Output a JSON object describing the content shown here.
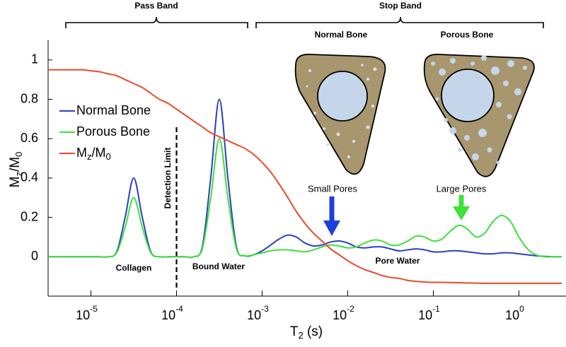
{
  "chart_data": {
    "type": "line",
    "xlabel": "T2 (s)",
    "ylabel": "Mz/M0",
    "xscale": "log",
    "xlim": [
      3.16e-06,
      3.55
    ],
    "ylim": [
      -0.2,
      1.1
    ],
    "xticks": [
      {
        "value": 1e-05,
        "label": "10-5"
      },
      {
        "value": 0.0001,
        "label": "10-4"
      },
      {
        "value": 0.001,
        "label": "10-3"
      },
      {
        "value": 0.01,
        "label": "10-2"
      },
      {
        "value": 0.1,
        "label": "10-1"
      },
      {
        "value": 1,
        "label": "100"
      }
    ],
    "yticks": [
      0,
      0.2,
      0.4,
      0.6,
      0.8,
      1
    ],
    "grid": false,
    "legend": "upper left",
    "detection_limit": 0.0001,
    "annotations": [
      "Pass Band",
      "Stop Band",
      "Normal Bone",
      "Porous Bone",
      "Small Pores",
      "Large Pores",
      "Collagen",
      "Bound Water",
      "Pore Water",
      "Detection Limit"
    ],
    "x": [
      3.16e-06,
      3.98e-06,
      5.01e-06,
      6.31e-06,
      7.94e-06,
      1e-05,
      1.26e-05,
      1.58e-05,
      2e-05,
      2.51e-05,
      3.16e-05,
      3.98e-05,
      5.01e-05,
      6.31e-05,
      7.94e-05,
      0.0001,
      0.000126,
      0.000158,
      0.0002,
      0.000251,
      0.000316,
      0.000398,
      0.000501,
      0.000631,
      0.000794,
      0.001,
      0.00126,
      0.00158,
      0.002,
      0.00251,
      0.00316,
      0.00398,
      0.00501,
      0.00631,
      0.00794,
      0.01,
      0.0126,
      0.0158,
      0.02,
      0.0251,
      0.0316,
      0.0398,
      0.0501,
      0.0631,
      0.0794,
      0.1,
      0.126,
      0.158,
      0.2,
      0.251,
      0.316,
      0.398,
      0.501,
      0.631,
      0.794,
      1,
      1.26,
      1.58,
      2,
      2.51,
      3.16
    ],
    "series": [
      {
        "name": "Normal Bone",
        "color": "#2b3fc6",
        "values": [
          0,
          0,
          0,
          0,
          0,
          0,
          0,
          0,
          0.025,
          0.2,
          0.4,
          0.2,
          0.025,
          0,
          0,
          0,
          0,
          0,
          0.05,
          0.4,
          0.8,
          0.4,
          0.05,
          0.005,
          0.01,
          0.03,
          0.06,
          0.09,
          0.11,
          0.1,
          0.07,
          0.055,
          0.06,
          0.075,
          0.08,
          0.07,
          0.05,
          0.045,
          0.05,
          0.05,
          0.04,
          0.03,
          0.035,
          0.04,
          0.035,
          0.025,
          0.025,
          0.03,
          0.03,
          0.025,
          0.02,
          0.015,
          0.015,
          0.02,
          0.02,
          0.015,
          0.01,
          0.005,
          0.002,
          0,
          0
        ]
      },
      {
        "name": "Porous Bone",
        "color": "#3fe03a",
        "values": [
          0,
          0,
          0,
          0,
          0,
          0,
          0,
          0,
          0.02,
          0.15,
          0.3,
          0.15,
          0.02,
          0,
          0,
          0,
          0,
          0,
          0.04,
          0.3,
          0.6,
          0.3,
          0.04,
          0.005,
          0.01,
          0.02,
          0.03,
          0.035,
          0.035,
          0.03,
          0.025,
          0.035,
          0.05,
          0.06,
          0.055,
          0.045,
          0.05,
          0.07,
          0.085,
          0.08,
          0.06,
          0.06,
          0.08,
          0.105,
          0.1,
          0.08,
          0.09,
          0.13,
          0.16,
          0.14,
          0.1,
          0.12,
          0.18,
          0.21,
          0.18,
          0.1,
          0.04,
          0.01,
          0,
          0,
          0
        ]
      },
      {
        "name": "Mz/M0",
        "color": "#e84a2c",
        "values": [
          0.95,
          0.95,
          0.95,
          0.95,
          0.95,
          0.945,
          0.94,
          0.93,
          0.92,
          0.9,
          0.88,
          0.86,
          0.83,
          0.8,
          0.78,
          0.75,
          0.72,
          0.69,
          0.66,
          0.63,
          0.61,
          0.59,
          0.57,
          0.55,
          0.52,
          0.48,
          0.43,
          0.37,
          0.3,
          0.23,
          0.17,
          0.12,
          0.08,
          0.04,
          0.01,
          -0.02,
          -0.045,
          -0.065,
          -0.08,
          -0.095,
          -0.105,
          -0.11,
          -0.12,
          -0.125,
          -0.128,
          -0.13,
          -0.13,
          -0.131,
          -0.132,
          -0.133,
          -0.134,
          -0.135,
          -0.135,
          -0.135,
          -0.135,
          -0.135,
          -0.135,
          -0.135,
          -0.135,
          -0.135,
          -0.135
        ]
      }
    ]
  }
}
